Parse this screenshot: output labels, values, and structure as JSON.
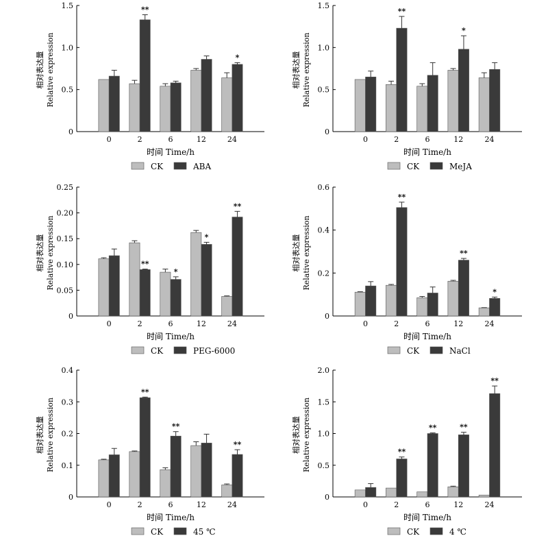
{
  "colors": {
    "ck": "#bdbdbd",
    "treatment": "#3a3a3a"
  },
  "chart_data": [
    {
      "type": "bar",
      "ylabel_cn": "相对表达量",
      "ylabel": "Relative expression",
      "xlabel": "时间 Time/h",
      "categories": [
        "0",
        "2",
        "6",
        "12",
        "24"
      ],
      "ylim": [
        0,
        1.5
      ],
      "yticks": [
        "0",
        "0.5",
        "1.0",
        "1.5"
      ],
      "series": [
        {
          "name": "CK",
          "values": [
            0.62,
            0.57,
            0.54,
            0.73,
            0.64
          ],
          "errors": [
            0,
            0.04,
            0.03,
            0.02,
            0.06
          ]
        },
        {
          "name": "ABA",
          "values": [
            0.66,
            1.33,
            0.58,
            0.86,
            0.8
          ],
          "errors": [
            0.07,
            0.06,
            0.02,
            0.04,
            0.02
          ]
        }
      ],
      "significance": [
        "",
        "**",
        "",
        "",
        "*"
      ]
    },
    {
      "type": "bar",
      "ylabel_cn": "相对表达量",
      "ylabel": "Relative expression",
      "xlabel": "时间 Time/h",
      "categories": [
        "0",
        "2",
        "6",
        "12",
        "24"
      ],
      "ylim": [
        0,
        1.5
      ],
      "yticks": [
        "0",
        "0.5",
        "1.0",
        "1.5"
      ],
      "series": [
        {
          "name": "CK",
          "values": [
            0.62,
            0.56,
            0.54,
            0.73,
            0.64
          ],
          "errors": [
            0,
            0.04,
            0.03,
            0.02,
            0.06
          ]
        },
        {
          "name": "MeJA",
          "values": [
            0.65,
            1.23,
            0.67,
            0.98,
            0.74
          ],
          "errors": [
            0.07,
            0.14,
            0.15,
            0.16,
            0.08
          ]
        }
      ],
      "significance": [
        "",
        "**",
        "",
        "*",
        ""
      ]
    },
    {
      "type": "bar",
      "ylabel_cn": "相对表达量",
      "ylabel": "Relative expression",
      "xlabel": "时间 Time/h",
      "categories": [
        "0",
        "2",
        "6",
        "12",
        "24"
      ],
      "ylim": [
        0,
        0.25
      ],
      "yticks": [
        "0",
        "0.05",
        "0.10",
        "0.15",
        "0.20",
        "0.25"
      ],
      "series": [
        {
          "name": "CK",
          "values": [
            0.111,
            0.142,
            0.085,
            0.162,
            0.038
          ],
          "errors": [
            0.002,
            0.004,
            0.006,
            0.004,
            0.001
          ]
        },
        {
          "name": "PEG-6000",
          "values": [
            0.117,
            0.09,
            0.071,
            0.139,
            0.192
          ],
          "errors": [
            0.013,
            0.001,
            0.005,
            0.004,
            0.011
          ]
        }
      ],
      "significance": [
        "",
        "**",
        "*",
        "*",
        "**"
      ]
    },
    {
      "type": "bar",
      "ylabel_cn": "相对表达量",
      "ylabel": "Relative expression",
      "xlabel": "时间 Time/h",
      "categories": [
        "0",
        "2",
        "6",
        "12",
        "24"
      ],
      "ylim": [
        0,
        0.6
      ],
      "yticks": [
        "0",
        "0.2",
        "0.4",
        "0.6"
      ],
      "series": [
        {
          "name": "CK",
          "values": [
            0.111,
            0.143,
            0.085,
            0.162,
            0.038
          ],
          "errors": [
            0.002,
            0.004,
            0.006,
            0.004,
            0.001
          ]
        },
        {
          "name": "NaCl",
          "values": [
            0.14,
            0.505,
            0.107,
            0.26,
            0.082
          ],
          "errors": [
            0.02,
            0.025,
            0.028,
            0.008,
            0.006
          ]
        }
      ],
      "significance": [
        "",
        "**",
        "",
        "**",
        "*"
      ]
    },
    {
      "type": "bar",
      "ylabel_cn": "相对表达量",
      "ylabel": "Relative expression",
      "xlabel": "时间 Time/h",
      "categories": [
        "0",
        "2",
        "6",
        "12",
        "24"
      ],
      "ylim": [
        0,
        0.4
      ],
      "yticks": [
        "0",
        "0.1",
        "0.2",
        "0.3",
        "0.4"
      ],
      "series": [
        {
          "name": "CK",
          "values": [
            0.117,
            0.143,
            0.086,
            0.162,
            0.038
          ],
          "errors": [
            0.002,
            0.002,
            0.006,
            0.012,
            0.003
          ]
        },
        {
          "name": "45 ℃",
          "values": [
            0.133,
            0.313,
            0.192,
            0.17,
            0.134
          ],
          "errors": [
            0.02,
            0.002,
            0.014,
            0.028,
            0.015
          ]
        }
      ],
      "significance": [
        "",
        "**",
        "**",
        "",
        "**"
      ]
    },
    {
      "type": "bar",
      "ylabel_cn": "相对表达量",
      "ylabel": "Relative expression",
      "xlabel": "时间 Time/h",
      "categories": [
        "0",
        "2",
        "6",
        "12",
        "24"
      ],
      "ylim": [
        0,
        2.0
      ],
      "yticks": [
        "0",
        "0.5",
        "1.0",
        "1.5",
        "2.0"
      ],
      "series": [
        {
          "name": "CK",
          "values": [
            0.11,
            0.14,
            0.08,
            0.16,
            0.03
          ],
          "errors": [
            0,
            0,
            0,
            0.01,
            0
          ]
        },
        {
          "name": "4 ℃",
          "values": [
            0.15,
            0.6,
            1.0,
            0.98,
            1.63
          ],
          "errors": [
            0.06,
            0.03,
            0.01,
            0.04,
            0.12
          ]
        }
      ],
      "significance": [
        "",
        "**",
        "**",
        "**",
        "**"
      ]
    }
  ]
}
